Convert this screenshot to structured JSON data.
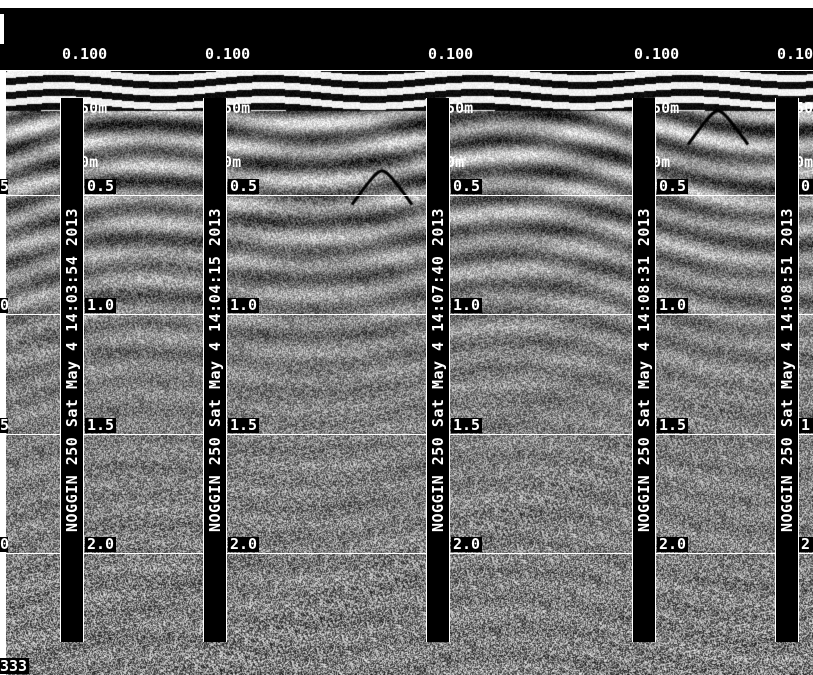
{
  "header": {
    "columns": [
      {
        "line1": "0.100",
        "line2": "2.50m",
        "line3": "0.0m"
      },
      {
        "line1": "0.100",
        "line2": "2.50m",
        "line3": "0.0m"
      },
      {
        "line1": "0.100",
        "line2": "2.50m",
        "line3": "0.0m"
      },
      {
        "line1": "0.100",
        "line2": "2.50m",
        "line3": "0.0m"
      },
      {
        "line1": "0.10",
        "line2": "2.50",
        "line3": "0.0m"
      }
    ]
  },
  "strips": [
    "NOGGIN  250   Sat May  4 14:03:54 2013",
    "NOGGIN  250   Sat May  4 14:04:15 2013",
    "NOGGIN  250   Sat May  4 14:07:40 2013",
    "NOGGIN  250   Sat May  4 14:08:31 2013",
    "NOGGIN  250   Sat May  4 14:08:51 2013"
  ],
  "depth_labels": [
    "0.5",
    "1.0",
    "1.5",
    "2.0"
  ],
  "edge_labels": [
    "5",
    "0",
    "5",
    "0"
  ],
  "right_edge_labels": [
    "0",
    "",
    "1",
    "2"
  ],
  "trace_count": "333",
  "colors": {
    "background": "#000000",
    "text": "#ffffff"
  }
}
